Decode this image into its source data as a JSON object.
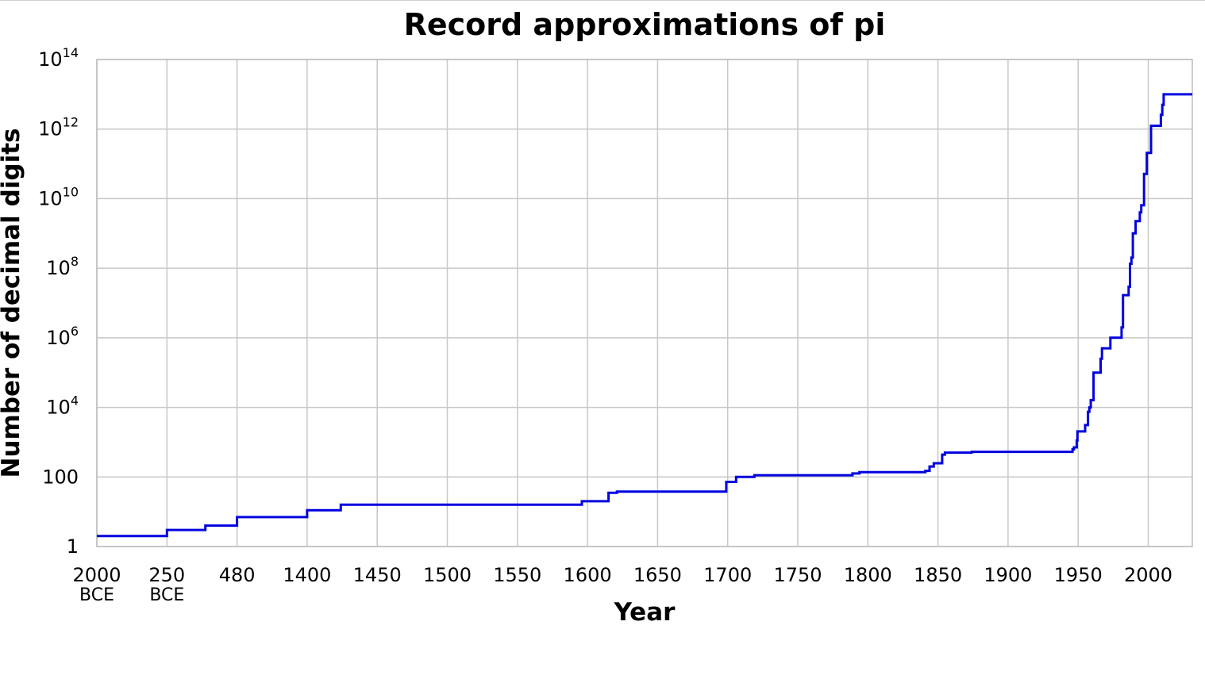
{
  "chart_data": {
    "type": "line",
    "title": "Record approximations of pi",
    "xlabel": "Year",
    "ylabel": "Number of decimal digits",
    "y_scale": "log10",
    "ylim": [
      1,
      100000000000000
    ],
    "grid": true,
    "line_style": "step",
    "x_axis_note": "non-uniform scale: each labeled tick is evenly spaced on the axis",
    "x_ticks": [
      {
        "label": "2000",
        "sublabel": "BCE",
        "year": -2000
      },
      {
        "label": "250",
        "sublabel": "BCE",
        "year": -250
      },
      {
        "label": "480",
        "sublabel": "",
        "year": 480
      },
      {
        "label": "1400",
        "sublabel": "",
        "year": 1400
      },
      {
        "label": "1450",
        "sublabel": "",
        "year": 1450
      },
      {
        "label": "1500",
        "sublabel": "",
        "year": 1500
      },
      {
        "label": "1550",
        "sublabel": "",
        "year": 1550
      },
      {
        "label": "1600",
        "sublabel": "",
        "year": 1600
      },
      {
        "label": "1650",
        "sublabel": "",
        "year": 1650
      },
      {
        "label": "1700",
        "sublabel": "",
        "year": 1700
      },
      {
        "label": "1750",
        "sublabel": "",
        "year": 1750
      },
      {
        "label": "1800",
        "sublabel": "",
        "year": 1800
      },
      {
        "label": "1850",
        "sublabel": "",
        "year": 1850
      },
      {
        "label": "1900",
        "sublabel": "",
        "year": 1900
      },
      {
        "label": "1950",
        "sublabel": "",
        "year": 1950
      },
      {
        "label": "2000",
        "sublabel": "",
        "year": 2000
      }
    ],
    "y_ticks": [
      {
        "base": "1",
        "exp": "",
        "value": 1
      },
      {
        "base": "100",
        "exp": "",
        "value": 100
      },
      {
        "base": "10",
        "exp": "4",
        "value": 10000
      },
      {
        "base": "10",
        "exp": "6",
        "value": 1000000
      },
      {
        "base": "10",
        "exp": "8",
        "value": 100000000
      },
      {
        "base": "10",
        "exp": "10",
        "value": 10000000000
      },
      {
        "base": "10",
        "exp": "12",
        "value": 1000000000000
      },
      {
        "base": "10",
        "exp": "14",
        "value": 100000000000000
      }
    ],
    "series": [
      {
        "color": "#0000e0",
        "points": [
          [
            -2000,
            2
          ],
          [
            -250,
            3
          ],
          [
            150,
            4
          ],
          [
            480,
            7
          ],
          [
            1400,
            11
          ],
          [
            1424,
            16
          ],
          [
            1596,
            20
          ],
          [
            1615,
            35
          ],
          [
            1621,
            38
          ],
          [
            1699,
            72
          ],
          [
            1706,
            100
          ],
          [
            1719,
            112
          ],
          [
            1789,
            126
          ],
          [
            1794,
            137
          ],
          [
            1841,
            150
          ],
          [
            1844,
            200
          ],
          [
            1847,
            248
          ],
          [
            1853,
            440
          ],
          [
            1855,
            500
          ],
          [
            1874,
            527
          ],
          [
            1946,
            620
          ],
          [
            1947,
            710
          ],
          [
            1949,
            1120
          ],
          [
            1949.5,
            2037
          ],
          [
            1955,
            3089
          ],
          [
            1957,
            7480
          ],
          [
            1958,
            10000
          ],
          [
            1959,
            16167
          ],
          [
            1961,
            100265
          ],
          [
            1966,
            250000
          ],
          [
            1967,
            500000
          ],
          [
            1973,
            1001250
          ],
          [
            1981,
            2000036
          ],
          [
            1982,
            16777206
          ],
          [
            1986,
            29360111
          ],
          [
            1987,
            134214700
          ],
          [
            1988,
            201326551
          ],
          [
            1989,
            1011196691
          ],
          [
            1991,
            2260000000
          ],
          [
            1994,
            4044000000
          ],
          [
            1995,
            6442450938
          ],
          [
            1997,
            51539600000
          ],
          [
            1999,
            206158430000
          ],
          [
            2002,
            1241100000000
          ],
          [
            2009,
            2576980377524
          ],
          [
            2010,
            5000000000000
          ],
          [
            2011,
            10000000000000
          ]
        ]
      }
    ]
  }
}
